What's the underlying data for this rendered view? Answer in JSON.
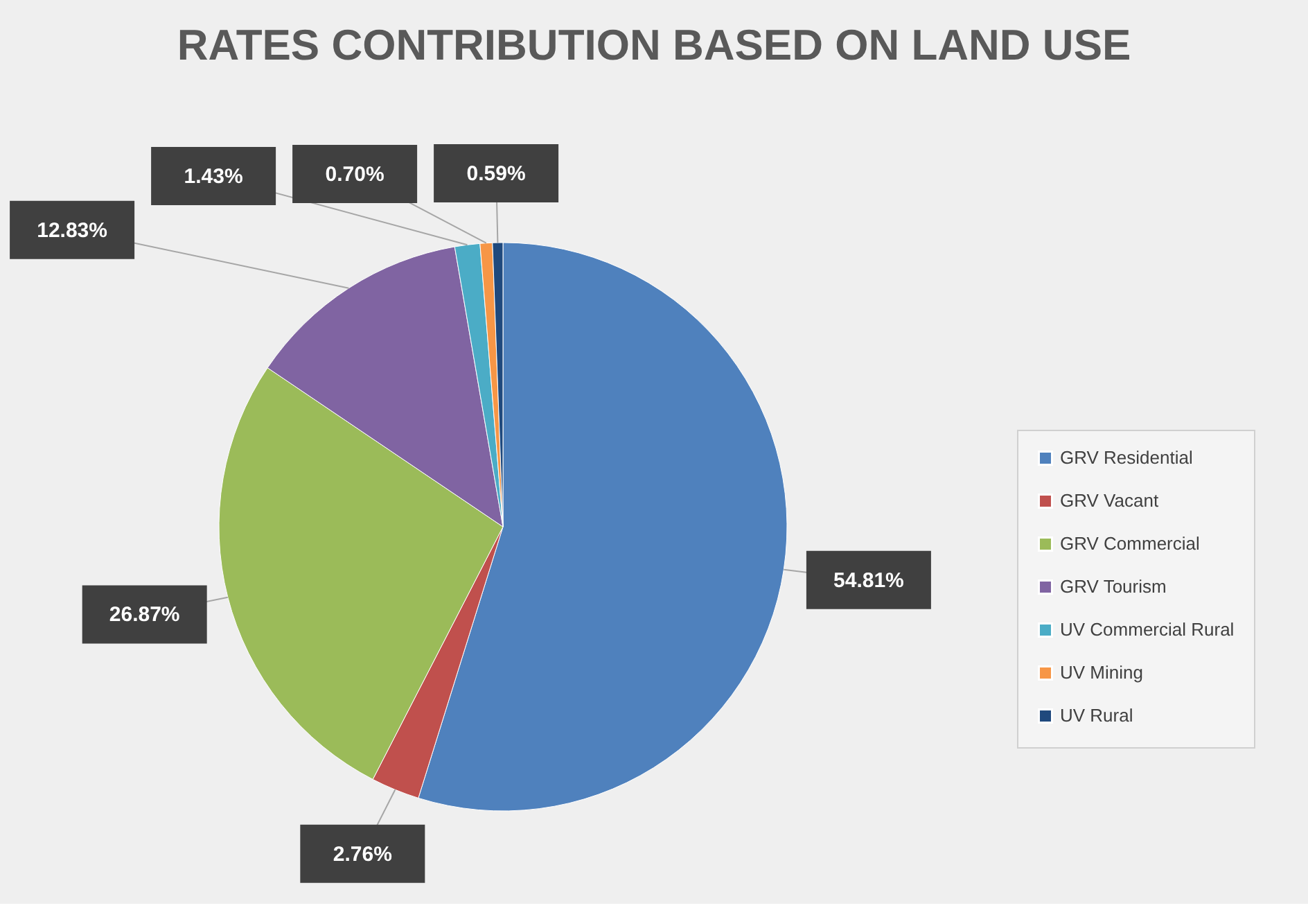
{
  "chart_data": {
    "type": "pie",
    "title": "RATES CONTRIBUTION BASED ON LAND USE",
    "categories": [
      "GRV Residential",
      "GRV Vacant",
      "GRV Commercial",
      "GRV Tourism",
      "UV Commercial Rural",
      "UV Mining",
      "UV Rural"
    ],
    "values": [
      54.81,
      2.76,
      26.87,
      12.83,
      1.43,
      0.7,
      0.59
    ],
    "value_labels": [
      "54.81%",
      "2.76%",
      "26.87%",
      "12.83%",
      "1.43%",
      "0.70%",
      "0.59%"
    ],
    "colors": [
      "#4f81bd",
      "#c0504d",
      "#9bbb59",
      "#8064a2",
      "#4bacc6",
      "#f79646",
      "#1f497d"
    ],
    "legend": "right"
  }
}
